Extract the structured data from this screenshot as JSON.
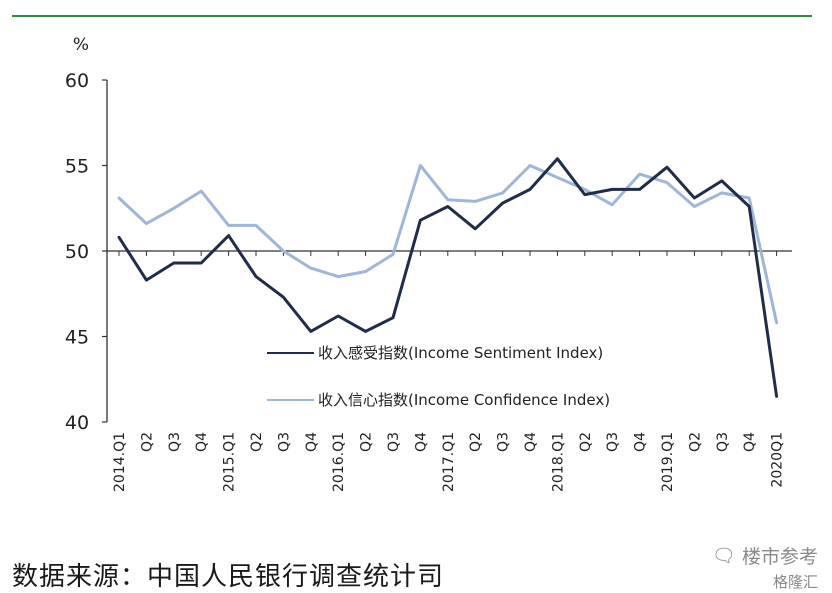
{
  "chart_data": {
    "type": "line",
    "y_unit": "%",
    "ylim": [
      40,
      60
    ],
    "y_ticks": [
      40,
      45,
      50,
      55,
      60
    ],
    "reference_line": 50,
    "categories": [
      "2014.Q1",
      "Q2",
      "Q3",
      "Q4",
      "2015.Q1",
      "Q2",
      "Q3",
      "Q4",
      "2016.Q1",
      "Q2",
      "Q3",
      "Q4",
      "2017.Q1",
      "Q2",
      "Q3",
      "Q4",
      "2018.Q1",
      "Q2",
      "Q3",
      "Q4",
      "2019.Q1",
      "Q2",
      "Q3",
      "Q4",
      "2020Q1"
    ],
    "series": [
      {
        "name": "收入感受指数(Income Sentiment Index)",
        "color": "#1f2d4a",
        "values": [
          50.8,
          48.3,
          49.3,
          49.3,
          50.9,
          48.5,
          47.3,
          45.3,
          46.2,
          45.3,
          46.1,
          51.8,
          52.6,
          51.3,
          52.8,
          53.6,
          55.4,
          53.3,
          53.6,
          53.6,
          54.9,
          53.1,
          54.1,
          52.6,
          41.5
        ]
      },
      {
        "name": "收入信心指数(Income Confidence Index)",
        "color": "#9db6d9",
        "values": [
          53.1,
          51.6,
          52.5,
          53.5,
          51.5,
          51.5,
          50.0,
          49.0,
          48.5,
          48.8,
          49.8,
          55.0,
          53.0,
          52.9,
          53.4,
          55.0,
          54.3,
          53.6,
          52.7,
          54.5,
          54.0,
          52.6,
          53.4,
          53.1,
          45.8
        ]
      }
    ],
    "legend_position": "inside-lower-center",
    "grid": false
  },
  "source": "数据来源：中国人民银行调查统计司",
  "watermark": {
    "top": "楼市参考",
    "bottom": "格隆汇"
  },
  "colors": {
    "top_rule": "#2e8b3a",
    "axis": "#333333"
  }
}
